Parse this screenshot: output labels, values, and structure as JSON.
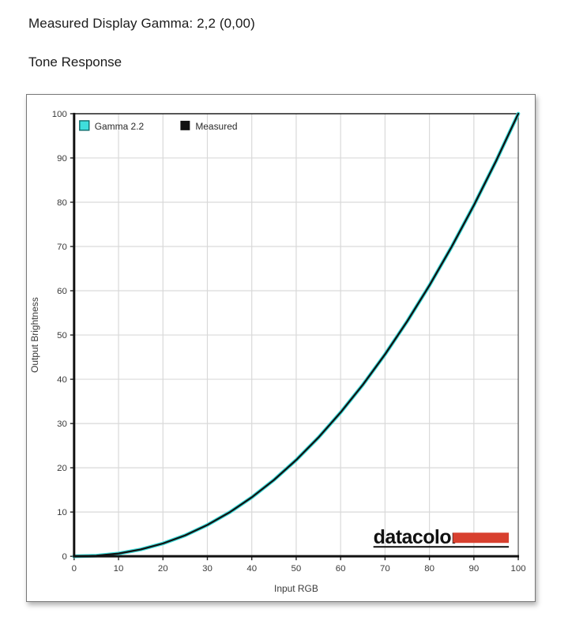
{
  "page": {
    "title_line": "Measured Display Gamma: 2,2 (0,00)",
    "subtitle": "Tone Response"
  },
  "chart_data": {
    "type": "line",
    "title": "Tone Response",
    "xlabel": "Input RGB",
    "ylabel": "Output Brightness",
    "xlim": [
      0,
      100
    ],
    "ylim": [
      0,
      100
    ],
    "x_ticks": [
      0,
      10,
      20,
      30,
      40,
      50,
      60,
      70,
      80,
      90,
      100
    ],
    "y_ticks": [
      0,
      10,
      20,
      30,
      40,
      50,
      60,
      70,
      80,
      90,
      100
    ],
    "grid": true,
    "legend_position": "top-left",
    "gamma_target": 2.2,
    "measured_gamma_label": "2,2 (0,00)",
    "x": [
      0,
      5,
      10,
      15,
      20,
      25,
      30,
      35,
      40,
      45,
      50,
      55,
      60,
      65,
      70,
      75,
      80,
      85,
      90,
      95,
      100
    ],
    "series": [
      {
        "name": "Gamma 2.2",
        "color": "#3FDEDC",
        "values": [
          0,
          0.14,
          0.63,
          1.54,
          2.9,
          4.74,
          7.08,
          9.93,
          13.32,
          17.26,
          21.76,
          26.84,
          32.51,
          38.76,
          45.63,
          53.11,
          61.21,
          69.94,
          79.31,
          89.33,
          100
        ]
      },
      {
        "name": "Measured",
        "color": "#121212",
        "values": [
          0,
          0.14,
          0.63,
          1.54,
          2.9,
          4.74,
          7.08,
          9.93,
          13.32,
          17.26,
          21.76,
          26.84,
          32.51,
          38.76,
          45.63,
          53.11,
          61.21,
          69.94,
          79.31,
          89.33,
          100
        ]
      }
    ]
  },
  "logo": {
    "text": "datacolor",
    "bar_color": "#D8402F"
  }
}
